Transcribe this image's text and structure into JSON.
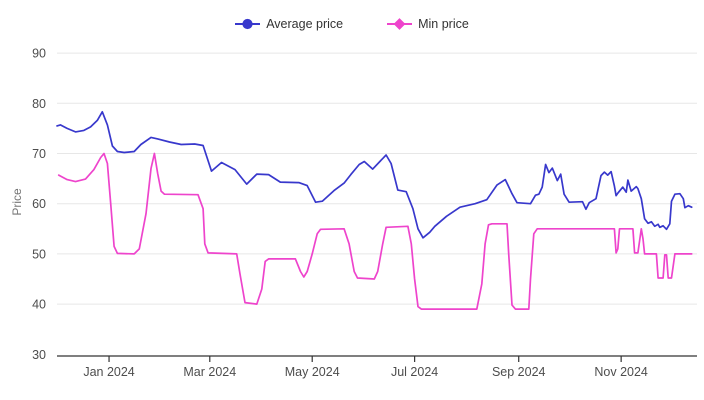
{
  "legend": {
    "items": [
      {
        "label": "Average price",
        "color": "#3838cc",
        "marker": "circle"
      },
      {
        "label": "Min price",
        "color": "#ee44cc",
        "marker": "diamond"
      }
    ]
  },
  "colors": {
    "background": "#ffffff",
    "grid": "#e7e7e7",
    "axis": "#333333",
    "tick_label": "#4d4d4d",
    "axis_title": "#767676",
    "average_line": "#3838cc",
    "min_line": "#ee44cc"
  },
  "chart_data": {
    "type": "line",
    "title": "",
    "xlabel": "",
    "ylabel": "Price",
    "ylim": [
      30,
      90
    ],
    "yticks": [
      30,
      40,
      50,
      60,
      70,
      80,
      90
    ],
    "grid": true,
    "legend_position": "top-center",
    "x_unit": "days since 2023-12-01",
    "xlim": [
      0,
      381
    ],
    "xticks": [
      {
        "day": 31,
        "label": "Jan 2024"
      },
      {
        "day": 91,
        "label": "Mar 2024"
      },
      {
        "day": 152,
        "label": "May 2024"
      },
      {
        "day": 213,
        "label": "Jul 2024"
      },
      {
        "day": 275,
        "label": "Sep 2024"
      },
      {
        "day": 336,
        "label": "Nov 2024"
      }
    ],
    "series": [
      {
        "name": "Average price",
        "color": "#3838cc",
        "marker": "circle",
        "points": [
          [
            0,
            75.5
          ],
          [
            2,
            75.7
          ],
          [
            6,
            75.0
          ],
          [
            11,
            74.3
          ],
          [
            16,
            74.6
          ],
          [
            20,
            75.3
          ],
          [
            24,
            76.6
          ],
          [
            27,
            78.3
          ],
          [
            30,
            75.7
          ],
          [
            33,
            71.5
          ],
          [
            36,
            70.4
          ],
          [
            40,
            70.2
          ],
          [
            46,
            70.4
          ],
          [
            50,
            71.8
          ],
          [
            56,
            73.2
          ],
          [
            60,
            72.9
          ],
          [
            67,
            72.3
          ],
          [
            74,
            71.8
          ],
          [
            82,
            71.9
          ],
          [
            87,
            71.6
          ],
          [
            92,
            66.5
          ],
          [
            98,
            68.2
          ],
          [
            106,
            66.8
          ],
          [
            113,
            63.9
          ],
          [
            119,
            65.9
          ],
          [
            126,
            65.8
          ],
          [
            133,
            64.3
          ],
          [
            144,
            64.2
          ],
          [
            149,
            63.6
          ],
          [
            154,
            60.3
          ],
          [
            158,
            60.5
          ],
          [
            165,
            62.6
          ],
          [
            171,
            64.1
          ],
          [
            175,
            65.8
          ],
          [
            180,
            67.8
          ],
          [
            183,
            68.4
          ],
          [
            188,
            66.9
          ],
          [
            192,
            68.3
          ],
          [
            196,
            69.7
          ],
          [
            199,
            68.0
          ],
          [
            203,
            62.7
          ],
          [
            208,
            62.4
          ],
          [
            212,
            59.0
          ],
          [
            215,
            55.0
          ],
          [
            218,
            53.2
          ],
          [
            222,
            54.3
          ],
          [
            225,
            55.5
          ],
          [
            232,
            57.5
          ],
          [
            240,
            59.3
          ],
          [
            249,
            60.0
          ],
          [
            256,
            60.8
          ],
          [
            262,
            63.7
          ],
          [
            267,
            64.8
          ],
          [
            271,
            62.0
          ],
          [
            274,
            60.2
          ],
          [
            282,
            60.0
          ],
          [
            285,
            61.7
          ],
          [
            287,
            61.9
          ],
          [
            289,
            63.3
          ],
          [
            291,
            67.8
          ],
          [
            293,
            66.2
          ],
          [
            295,
            67.1
          ],
          [
            298,
            64.6
          ],
          [
            300,
            65.9
          ],
          [
            302,
            61.9
          ],
          [
            305,
            60.3
          ],
          [
            313,
            60.4
          ],
          [
            315,
            58.9
          ],
          [
            317,
            60.2
          ],
          [
            321,
            61.0
          ],
          [
            324,
            65.6
          ],
          [
            326,
            66.3
          ],
          [
            328,
            65.7
          ],
          [
            330,
            66.4
          ],
          [
            332,
            63.5
          ],
          [
            333,
            61.6
          ],
          [
            334,
            62.1
          ],
          [
            337,
            63.3
          ],
          [
            339,
            62.3
          ],
          [
            340,
            64.7
          ],
          [
            342,
            62.5
          ],
          [
            345,
            63.4
          ],
          [
            346,
            63.0
          ],
          [
            348,
            61.0
          ],
          [
            350,
            57.0
          ],
          [
            352,
            56.1
          ],
          [
            354,
            56.4
          ],
          [
            356,
            55.5
          ],
          [
            358,
            55.9
          ],
          [
            359,
            55.3
          ],
          [
            361,
            55.6
          ],
          [
            363,
            54.9
          ],
          [
            365,
            56.0
          ],
          [
            366,
            60.5
          ],
          [
            368,
            61.9
          ],
          [
            371,
            62.0
          ],
          [
            373,
            61.0
          ],
          [
            374,
            59.2
          ],
          [
            376,
            59.6
          ],
          [
            378,
            59.3
          ]
        ]
      },
      {
        "name": "Min price",
        "color": "#ee44cc",
        "marker": "diamond",
        "points": [
          [
            1,
            65.7
          ],
          [
            6,
            64.8
          ],
          [
            11,
            64.4
          ],
          [
            17,
            64.9
          ],
          [
            22,
            66.8
          ],
          [
            26,
            69.2
          ],
          [
            28,
            70.0
          ],
          [
            30,
            68.0
          ],
          [
            32,
            60.0
          ],
          [
            34,
            51.5
          ],
          [
            36,
            50.1
          ],
          [
            46,
            50.0
          ],
          [
            49,
            51.0
          ],
          [
            53,
            58.0
          ],
          [
            56,
            67.0
          ],
          [
            58,
            70.0
          ],
          [
            60,
            66.0
          ],
          [
            62,
            62.5
          ],
          [
            64,
            61.9
          ],
          [
            84,
            61.8
          ],
          [
            87,
            59.0
          ],
          [
            88,
            52.0
          ],
          [
            90,
            50.2
          ],
          [
            107,
            50.0
          ],
          [
            109,
            46.0
          ],
          [
            112,
            40.3
          ],
          [
            119,
            40.0
          ],
          [
            122,
            43.0
          ],
          [
            124,
            48.5
          ],
          [
            126,
            49.0
          ],
          [
            142,
            49.0
          ],
          [
            145,
            46.5
          ],
          [
            147,
            45.4
          ],
          [
            149,
            46.5
          ],
          [
            152,
            50.0
          ],
          [
            155,
            54.0
          ],
          [
            157,
            54.9
          ],
          [
            171,
            55.0
          ],
          [
            174,
            52.0
          ],
          [
            177,
            46.5
          ],
          [
            179,
            45.2
          ],
          [
            189,
            45.0
          ],
          [
            191,
            46.5
          ],
          [
            194,
            52.0
          ],
          [
            196,
            55.3
          ],
          [
            209,
            55.5
          ],
          [
            211,
            52.0
          ],
          [
            213,
            45.0
          ],
          [
            215,
            39.5
          ],
          [
            217,
            39.0
          ],
          [
            250,
            39.0
          ],
          [
            253,
            44.0
          ],
          [
            255,
            52.0
          ],
          [
            257,
            55.8
          ],
          [
            259,
            56.0
          ],
          [
            268,
            56.0
          ],
          [
            269,
            50.0
          ],
          [
            271,
            39.8
          ],
          [
            273,
            39.0
          ],
          [
            281,
            39.0
          ],
          [
            282,
            45.0
          ],
          [
            284,
            54.0
          ],
          [
            286,
            55.0
          ],
          [
            330,
            55.0
          ],
          [
            332,
            55.0
          ],
          [
            333,
            50.2
          ],
          [
            334,
            51.0
          ],
          [
            335,
            55.0
          ],
          [
            343,
            55.0
          ],
          [
            344,
            50.2
          ],
          [
            346,
            50.2
          ],
          [
            348,
            55.0
          ],
          [
            349,
            53.0
          ],
          [
            350,
            50.0
          ],
          [
            357,
            50.0
          ],
          [
            358,
            45.2
          ],
          [
            361,
            45.2
          ],
          [
            362,
            49.8
          ],
          [
            363,
            49.8
          ],
          [
            364,
            45.2
          ],
          [
            366,
            45.2
          ],
          [
            368,
            50.0
          ],
          [
            378,
            50.0
          ]
        ]
      }
    ]
  }
}
